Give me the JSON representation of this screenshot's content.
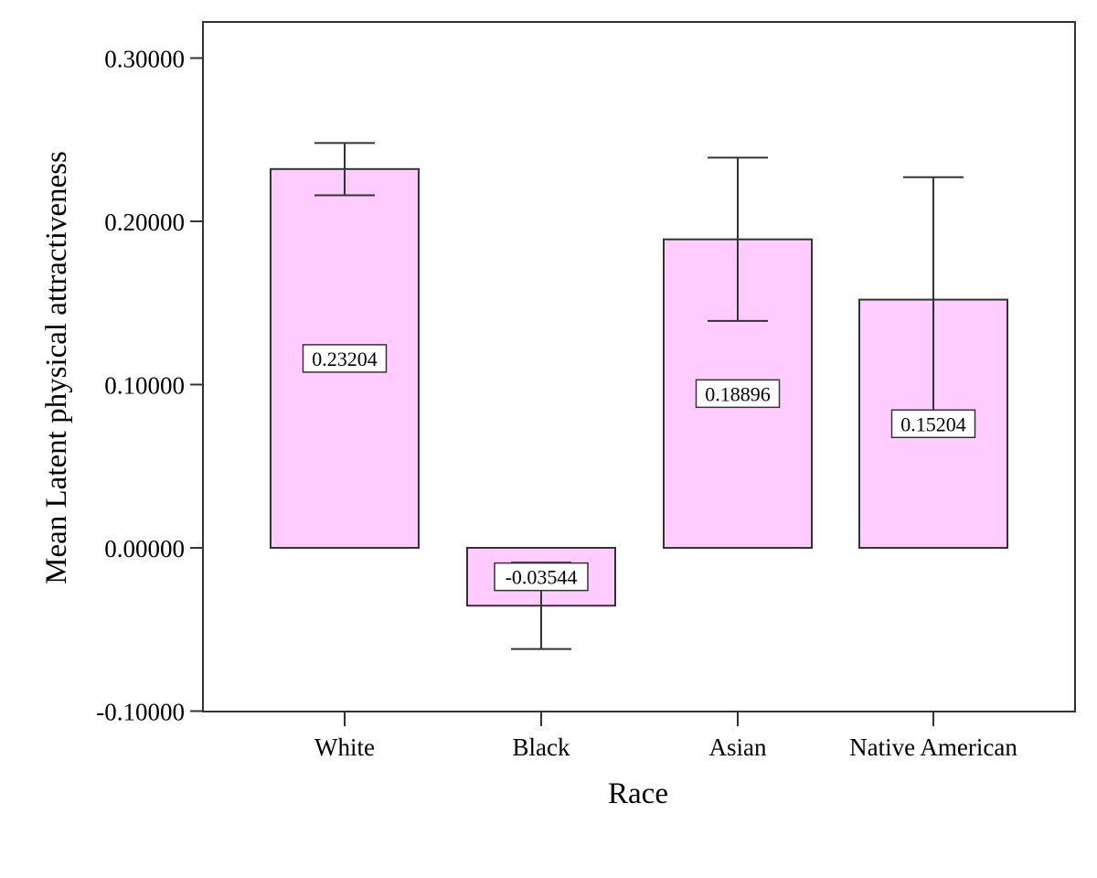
{
  "chart_data": {
    "type": "bar",
    "title": "",
    "xlabel": "Race",
    "ylabel": "Mean Latent physical attractiveness",
    "categories": [
      "White",
      "Black",
      "Asian",
      "Native American"
    ],
    "values": [
      0.23204,
      -0.03544,
      0.18896,
      0.15204
    ],
    "value_labels": [
      "0.23204",
      "-0.03544",
      "0.18896",
      "0.15204"
    ],
    "error_bars": [
      {
        "low": 0.216,
        "high": 0.248
      },
      {
        "low": -0.062,
        "high": -0.009
      },
      {
        "low": 0.139,
        "high": 0.239
      },
      {
        "low": 0.077,
        "high": 0.227
      }
    ],
    "ylim": [
      -0.1,
      0.32
    ],
    "yticks": [
      -0.1,
      0.0,
      0.1,
      0.2,
      0.3
    ],
    "ytick_labels": [
      "-0.10000",
      "0.00000",
      "0.10000",
      "0.20000",
      "0.30000"
    ],
    "grid": false,
    "legend": "none",
    "bar_color": "#ffccff",
    "bar_stroke": "#333333"
  }
}
